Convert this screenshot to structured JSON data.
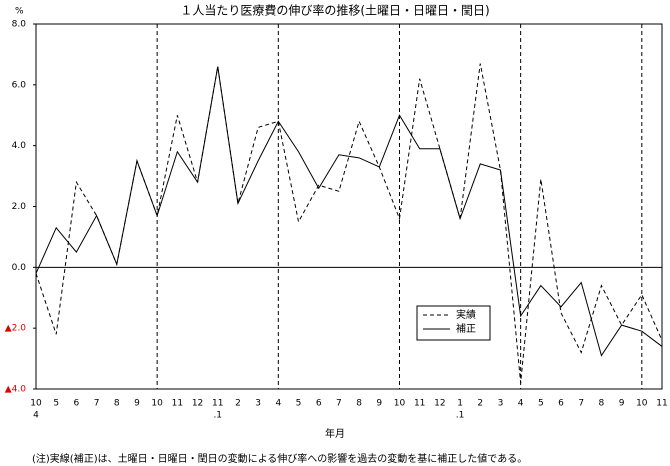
{
  "chart_data": {
    "type": "line",
    "title": "１人当たり医療費の伸び率の推移(土曜日・日曜日・閏日)",
    "unit": "%",
    "x_label": "年月",
    "note": "(注)実線(補正)は、土曜日・日曜日・閏日の変動による伸び率への影響を過去の変動を基に補正した値である。",
    "categories": [
      "10",
      "5",
      "6",
      "7",
      "8",
      "9",
      "10",
      "11",
      "12",
      "11",
      "2",
      "3",
      "4",
      "5",
      "6",
      "7",
      "8",
      "9",
      "10",
      "11",
      "12",
      "1",
      "2",
      "3",
      "4",
      "5",
      "6",
      "7",
      "8",
      "9",
      "10",
      "11"
    ],
    "x_sublabels": [
      "4",
      null,
      null,
      null,
      null,
      null,
      null,
      null,
      null,
      ".1",
      null,
      null,
      null,
      null,
      null,
      null,
      null,
      null,
      null,
      null,
      null,
      ".1",
      null,
      null,
      null,
      null,
      null,
      null,
      null,
      null,
      null,
      null
    ],
    "year_separators": [
      6,
      12,
      18,
      24,
      30
    ],
    "series": [
      {
        "name": "実績",
        "color": "#000000",
        "dash": true,
        "values": [
          -0.2,
          -2.2,
          2.8,
          1.7,
          0.1,
          3.5,
          1.7,
          5.0,
          2.8,
          6.6,
          2.1,
          4.6,
          4.8,
          1.5,
          2.7,
          2.5,
          4.8,
          3.3,
          1.6,
          6.2,
          3.9,
          1.6,
          6.7,
          3.2,
          -3.8,
          2.9,
          -1.5,
          -2.8,
          -0.6,
          -1.9,
          -0.9,
          -2.4
        ]
      },
      {
        "name": "補正",
        "color": "#000000",
        "dash": false,
        "values": [
          -0.2,
          1.3,
          0.5,
          1.7,
          0.1,
          3.5,
          1.7,
          3.8,
          2.8,
          6.6,
          2.1,
          3.5,
          4.8,
          3.8,
          2.6,
          3.7,
          3.6,
          3.3,
          5.0,
          3.9,
          3.9,
          1.6,
          3.4,
          3.2,
          -1.6,
          -0.6,
          -1.3,
          -0.5,
          -2.9,
          -1.9,
          -2.1,
          -2.6
        ]
      }
    ],
    "ylim": [
      -4,
      8
    ],
    "yticks": [
      {
        "value": 8,
        "label": "8.0"
      },
      {
        "value": 6,
        "label": "6.0"
      },
      {
        "value": 4,
        "label": "4.0"
      },
      {
        "value": 2,
        "label": "2.0"
      },
      {
        "value": 0,
        "label": "0.0"
      },
      {
        "value": -2,
        "label": "▲2.0"
      },
      {
        "value": -4,
        "label": "▲4.0"
      }
    ],
    "negative_tick_color": "#e00000"
  }
}
